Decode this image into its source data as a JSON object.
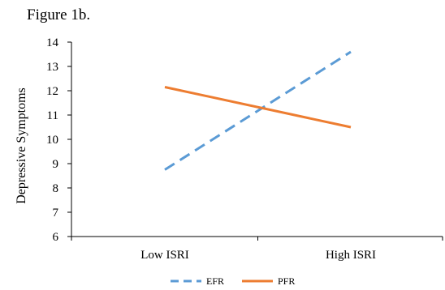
{
  "figure_label": "Figure 1b.",
  "colors": {
    "EFR": "#5b9bd5",
    "PFR": "#ed7d31",
    "axis": "#000000"
  },
  "chart_data": {
    "type": "line",
    "title": "",
    "xlabel": "",
    "ylabel": "Depressive Symptoms",
    "categories": [
      "Low ISRI",
      "High ISRI"
    ],
    "ylim": [
      6,
      14
    ],
    "yticks": [
      6,
      7,
      8,
      9,
      10,
      11,
      12,
      13,
      14
    ],
    "grid": false,
    "legend_position": "bottom",
    "series": [
      {
        "name": "EFR",
        "values": [
          8.75,
          13.6
        ],
        "style": "dashed",
        "color": "#5b9bd5"
      },
      {
        "name": "PFR",
        "values": [
          12.15,
          10.5
        ],
        "style": "solid",
        "color": "#ed7d31"
      }
    ]
  }
}
